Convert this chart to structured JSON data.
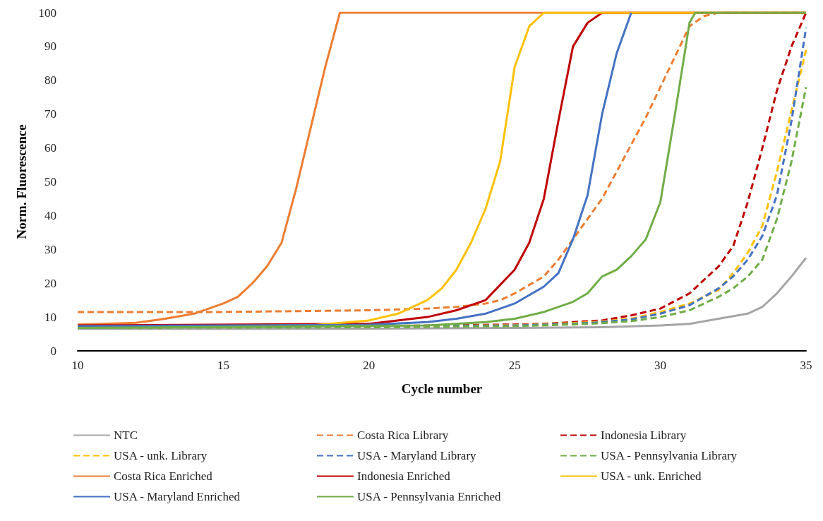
{
  "chart_data": {
    "type": "line",
    "xlabel": "Cycle number",
    "ylabel": "Norm. Fluorescence",
    "xlim": [
      10,
      35
    ],
    "xticks": [
      10,
      15,
      20,
      25,
      30,
      35
    ],
    "ylim": [
      0,
      100
    ],
    "yticks": [
      0,
      10,
      20,
      30,
      40,
      50,
      60,
      70,
      80,
      90,
      100
    ],
    "grid": false,
    "legend": "bottom",
    "marker": "none",
    "series": [
      {
        "name": "NTC",
        "color": "#a5a5a5",
        "line_style": "solid",
        "x": [
          10,
          15,
          20,
          25,
          28,
          30,
          31,
          32,
          33,
          33.5,
          34,
          34.5,
          35
        ],
        "values": [
          6.5,
          6.5,
          6.6,
          6.8,
          7,
          7.5,
          8,
          9.5,
          11,
          13,
          17,
          22,
          27.5
        ]
      },
      {
        "name": "Costa Rica Library",
        "color": "#ed7d31",
        "line_style": "dashed",
        "x": [
          10,
          15,
          20,
          22,
          23,
          24,
          24.5,
          25,
          26,
          26.5,
          27,
          27.5,
          28,
          28.5,
          29,
          29.5,
          30,
          30.5,
          31,
          31.5,
          32,
          35
        ],
        "values": [
          11.5,
          11.5,
          12,
          12.5,
          13,
          14,
          15,
          17,
          22,
          27,
          33,
          39,
          45,
          53,
          61,
          69,
          78,
          87,
          96,
          99,
          100,
          100
        ]
      },
      {
        "name": "Indonesia Library",
        "color": "#c00000",
        "line_style": "dashed",
        "x": [
          10,
          20,
          25,
          26,
          27,
          28,
          29,
          30,
          31,
          32,
          32.5,
          33,
          33.5,
          34,
          34.5,
          35
        ],
        "values": [
          7,
          7.3,
          7.8,
          8,
          8.5,
          9,
          10.5,
          12.5,
          17,
          25,
          31,
          44,
          60,
          77,
          90,
          100
        ]
      },
      {
        "name": "USA - unk. Library",
        "color": "#ffc000",
        "line_style": "dashed",
        "x": [
          10,
          20,
          25,
          27,
          28,
          29,
          30,
          31,
          32,
          32.5,
          33,
          33.5,
          34,
          34.5,
          35
        ],
        "values": [
          7,
          7.2,
          7.6,
          8.2,
          8.7,
          9.5,
          11.5,
          14,
          18,
          23,
          29,
          37,
          53,
          71,
          89
        ]
      },
      {
        "name": "USA - Maryland Library",
        "color": "#4472c4",
        "line_style": "dashed",
        "x": [
          10,
          20,
          25,
          27,
          28,
          29,
          30,
          31,
          32,
          32.5,
          33,
          33.5,
          34,
          34.5,
          35
        ],
        "values": [
          7,
          7.2,
          7.5,
          8,
          8.5,
          9.3,
          11,
          13.5,
          18.5,
          22,
          27,
          34,
          46,
          68,
          95.5
        ]
      },
      {
        "name": "USA - Pennsylvania Library",
        "color": "#70ad47",
        "line_style": "dashed",
        "x": [
          10,
          20,
          25,
          27,
          28,
          29,
          30,
          31,
          32,
          32.5,
          33,
          33.5,
          34,
          34.5,
          35
        ],
        "values": [
          6.8,
          7,
          7.3,
          7.8,
          8.2,
          8.8,
          10,
          12,
          16,
          18.5,
          22,
          27,
          39,
          56,
          78
        ]
      },
      {
        "name": "Costa Rica Enriched",
        "color": "#ed7d31",
        "line_style": "solid",
        "x": [
          10,
          12,
          13,
          14,
          14.5,
          15,
          15.5,
          16,
          16.5,
          17,
          17.5,
          18,
          18.5,
          19,
          35
        ],
        "values": [
          7.8,
          8.3,
          9.5,
          11,
          12.5,
          14,
          16,
          20,
          25,
          32,
          48,
          66,
          84,
          100,
          100
        ]
      },
      {
        "name": "Indonesia Enriched",
        "color": "#c00000",
        "line_style": "solid",
        "x": [
          10,
          20,
          22,
          23,
          24,
          25,
          25.5,
          26,
          26.5,
          27,
          27.5,
          28,
          35
        ],
        "values": [
          7.5,
          8,
          10,
          12,
          15,
          24,
          32,
          45,
          68,
          90,
          97,
          100,
          100
        ]
      },
      {
        "name": "USA - unk. Enriched",
        "color": "#ffc000",
        "line_style": "solid",
        "x": [
          10,
          18,
          20,
          21,
          22,
          22.5,
          23,
          23.5,
          24,
          24.5,
          25,
          25.5,
          26,
          35
        ],
        "values": [
          7,
          7.5,
          9,
          11,
          15,
          18.5,
          24,
          32,
          42,
          56,
          84,
          96,
          100,
          100
        ]
      },
      {
        "name": "USA - Maryland Enriched",
        "color": "#4472c4",
        "line_style": "solid",
        "x": [
          10,
          20,
          22,
          23,
          24,
          25,
          26,
          26.5,
          27,
          27.5,
          28,
          28.5,
          29
        ],
        "values": [
          7.3,
          7.7,
          8.5,
          9.5,
          11,
          14,
          19,
          23,
          33,
          46,
          70,
          88,
          100
        ]
      },
      {
        "name": "USA - Pennsylvania Enriched",
        "color": "#70ad47",
        "line_style": "solid",
        "x": [
          10,
          22,
          24,
          25,
          26,
          27,
          27.5,
          28,
          28.5,
          29,
          29.5,
          30,
          30.5,
          31,
          31.2,
          35
        ],
        "values": [
          6.8,
          7.5,
          8.5,
          9.5,
          11.5,
          14.5,
          17,
          22,
          24,
          28,
          33,
          44,
          70,
          97,
          100,
          100
        ]
      }
    ]
  }
}
